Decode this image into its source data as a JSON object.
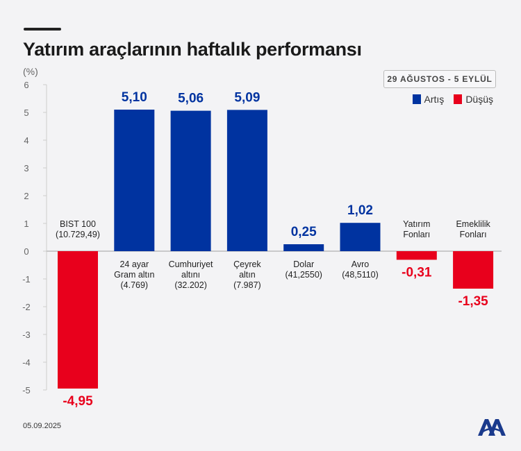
{
  "title": "Yatırım araçlarının haftalık performansı",
  "period": "29 AĞUSTOS - 5 EYLÜL",
  "date": "05.09.2025",
  "colors": {
    "increase": "#0033a0",
    "decrease": "#e8001c"
  },
  "chart_data": {
    "type": "bar",
    "ylabel": "(%)",
    "ylim": [
      -5,
      6
    ],
    "yticks": [
      "6",
      "5",
      "4",
      "3",
      "2",
      "1",
      "0",
      "-1",
      "-2",
      "-3",
      "-4",
      "-5"
    ],
    "legend": [
      {
        "name": "Artış",
        "color": "#0033a0"
      },
      {
        "name": "Düşüş",
        "color": "#e8001c"
      }
    ],
    "legend_position": "top-right",
    "categories": [
      [
        "BIST 100",
        "(10.729,49)"
      ],
      [
        "24 ayar",
        "Gram altın",
        "(4.769)"
      ],
      [
        "Cumhuriyet",
        "altını",
        "(32.202)"
      ],
      [
        "Çeyrek",
        "altın",
        "(7.987)"
      ],
      [
        "Dolar",
        "(41,2550)"
      ],
      [
        "Avro",
        "(48,5110)"
      ],
      [
        "Yatırım",
        "Fonları"
      ],
      [
        "Emeklilik",
        "Fonları"
      ]
    ],
    "values": [
      -4.95,
      5.1,
      5.06,
      5.09,
      0.25,
      1.02,
      -0.31,
      -1.35
    ],
    "value_labels": [
      "-4,95",
      "5,10",
      "5,06",
      "5,09",
      "0,25",
      "1,02",
      "-0,31",
      "-1,35"
    ]
  }
}
